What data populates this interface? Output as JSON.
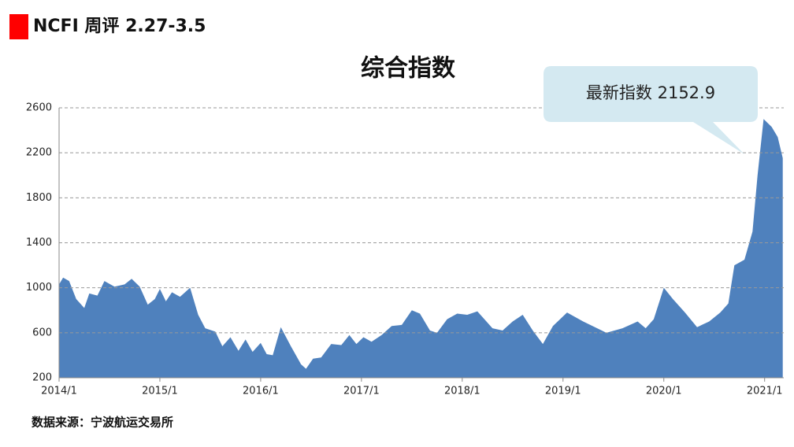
{
  "header": {
    "title": "NCFI 周评 2.27-3.5"
  },
  "chart_data": {
    "type": "area",
    "title": "综合指数",
    "color": "#4f81bd",
    "annotation": "最新指数 2152.9",
    "source": "数据来源：宁波航运交易所",
    "x": [
      2014.0,
      2014.04,
      2014.1,
      2014.17,
      2014.25,
      2014.3,
      2014.38,
      2014.45,
      2014.55,
      2014.65,
      2014.72,
      2014.8,
      2014.88,
      2014.95,
      2015.0,
      2015.06,
      2015.12,
      2015.2,
      2015.3,
      2015.38,
      2015.45,
      2015.55,
      2015.62,
      2015.7,
      2015.78,
      2015.85,
      2015.92,
      2016.0,
      2016.06,
      2016.12,
      2016.2,
      2016.3,
      2016.4,
      2016.45,
      2016.52,
      2016.6,
      2016.7,
      2016.8,
      2016.88,
      2016.95,
      2017.02,
      2017.1,
      2017.2,
      2017.3,
      2017.4,
      2017.5,
      2017.58,
      2017.68,
      2017.75,
      2017.85,
      2017.95,
      2018.05,
      2018.15,
      2018.22,
      2018.3,
      2018.4,
      2018.5,
      2018.6,
      2018.7,
      2018.8,
      2018.9,
      2019.04,
      2019.2,
      2019.43,
      2019.59,
      2019.74,
      2019.82,
      2019.9,
      2020.0,
      2020.09,
      2020.21,
      2020.33,
      2020.45,
      2020.56,
      2020.64,
      2020.7,
      2020.8,
      2020.88,
      2020.93,
      2020.99,
      2021.07,
      2021.13,
      2021.18
    ],
    "values": [
      1030,
      1090,
      1060,
      900,
      820,
      950,
      930,
      1060,
      1010,
      1030,
      1080,
      1010,
      850,
      900,
      990,
      880,
      960,
      920,
      1000,
      760,
      640,
      610,
      480,
      560,
      440,
      540,
      430,
      510,
      410,
      400,
      650,
      480,
      320,
      280,
      370,
      380,
      500,
      490,
      580,
      500,
      560,
      520,
      580,
      660,
      670,
      800,
      770,
      620,
      600,
      720,
      770,
      760,
      790,
      720,
      640,
      620,
      700,
      760,
      620,
      500,
      660,
      780,
      700,
      600,
      640,
      700,
      640,
      720,
      1000,
      900,
      780,
      650,
      700,
      780,
      860,
      1200,
      1250,
      1500,
      2000,
      2500,
      2430,
      2340,
      2152.9
    ],
    "xlim": [
      2014.0,
      2021.19
    ],
    "xticks": [
      {
        "value": 2014,
        "label": "2014/1"
      },
      {
        "value": 2015,
        "label": "2015/1"
      },
      {
        "value": 2016,
        "label": "2016/1"
      },
      {
        "value": 2017,
        "label": "2017/1"
      },
      {
        "value": 2018,
        "label": "2018/1"
      },
      {
        "value": 2019,
        "label": "2019/1"
      },
      {
        "value": 2020,
        "label": "2020/1"
      },
      {
        "value": 2021,
        "label": "2021/1"
      }
    ],
    "ylim": [
      200,
      2600
    ],
    "yticks": [
      200,
      600,
      1000,
      1400,
      1800,
      2200,
      2600
    ],
    "grid": true
  }
}
